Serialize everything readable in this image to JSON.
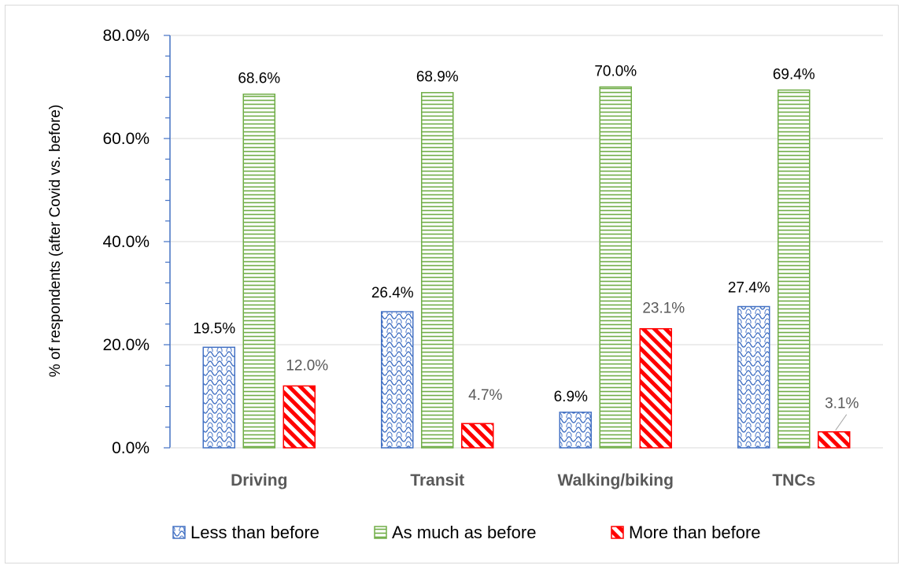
{
  "chart_data": {
    "type": "bar",
    "title": "",
    "xlabel": "",
    "ylabel": "% of respondents (after Covid vs. before)",
    "ylim": [
      0,
      80
    ],
    "yticks": [
      0,
      20,
      40,
      60,
      80
    ],
    "ytick_labels": [
      "0.0%",
      "20.0%",
      "40.0%",
      "60.0%",
      "80.0%"
    ],
    "grid": true,
    "legend_position": "bottom",
    "categories": [
      "Driving",
      "Transit",
      "Walking/biking",
      "TNCs"
    ],
    "series": [
      {
        "name": "Less than before",
        "color": "#4472c4",
        "pattern": "blue-wave-hatch",
        "values": [
          19.5,
          26.4,
          6.9,
          27.4
        ],
        "labels": [
          "19.5%",
          "26.4%",
          "6.9%",
          "27.4%"
        ]
      },
      {
        "name": "As much as before",
        "color": "#70ad47",
        "pattern": "green-horizontal-lines",
        "values": [
          68.6,
          68.9,
          70.0,
          69.4
        ],
        "labels": [
          "68.6%",
          "68.9%",
          "70.0%",
          "69.4%"
        ]
      },
      {
        "name": "More than before",
        "color": "#ff0000",
        "pattern": "red-diagonal-stripes",
        "values": [
          12.0,
          4.7,
          23.1,
          3.1
        ],
        "labels": [
          "12.0%",
          "4.7%",
          "23.1%",
          "3.1%"
        ]
      }
    ]
  }
}
